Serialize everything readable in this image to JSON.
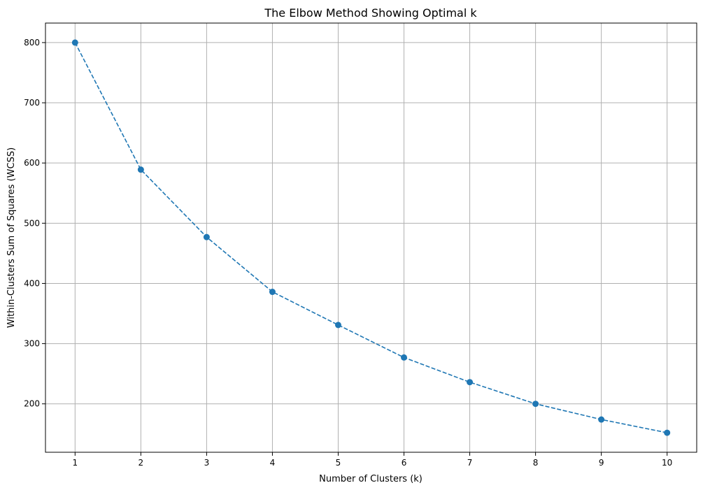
{
  "chart_data": {
    "type": "line",
    "title": "The Elbow Method Showing Optimal k",
    "xlabel": "Number of Clusters (k)",
    "ylabel": "Within-Clusters Sum of Squares (WCSS)",
    "x": [
      1,
      2,
      3,
      4,
      5,
      6,
      7,
      8,
      9,
      10
    ],
    "series": [
      {
        "values": [
          800,
          589,
          477,
          386,
          331,
          277,
          236,
          200,
          174,
          152
        ],
        "color": "#1f77b4",
        "line_style": "dashed",
        "marker": "circle"
      }
    ],
    "xticks": [
      1,
      2,
      3,
      4,
      5,
      6,
      7,
      8,
      9,
      10
    ],
    "yticks": [
      200,
      300,
      400,
      500,
      600,
      700,
      800
    ],
    "xlim": [
      0.55,
      10.45
    ],
    "ylim": [
      119.6,
      832.4
    ],
    "grid": true,
    "legend": false
  }
}
